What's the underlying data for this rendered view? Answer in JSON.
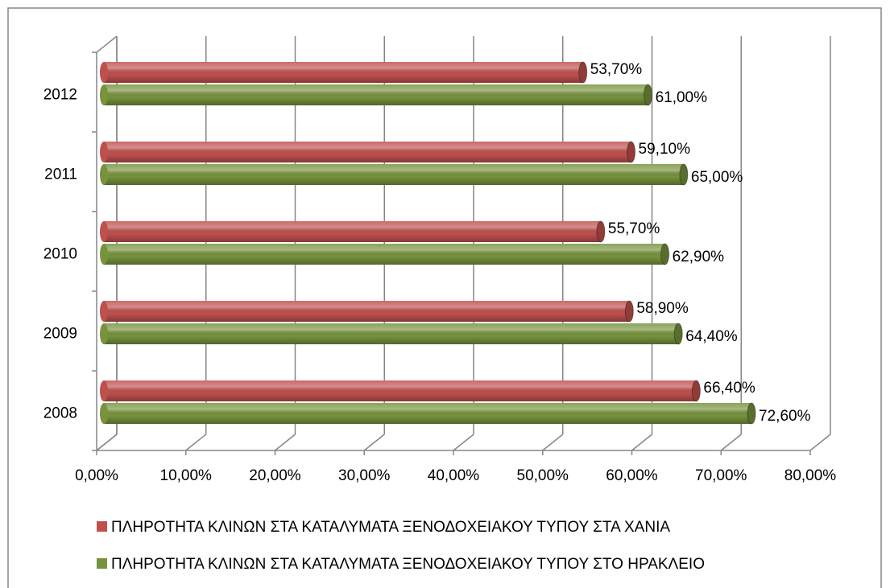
{
  "chart_data": {
    "type": "bar",
    "orientation": "horizontal",
    "categories": [
      "2008",
      "2009",
      "2010",
      "2011",
      "2012"
    ],
    "series": [
      {
        "name": "ΠΛΗΡΟΤΗΤΑ ΚΛΙΝΩΝ ΣΤΑ ΚΑΤΑΛΥΜΑΤΑ ΞΕΝΟΔΟΧΕΙΑΚΟΥ ΤΥΠΟΥ ΣΤΑ ΧΑΝΙΑ",
        "color": "#c0504d",
        "values": [
          66.4,
          58.9,
          55.7,
          59.1,
          53.7
        ],
        "value_labels": [
          "66,40%",
          "58,90%",
          "55,70%",
          "59,10%",
          "53,70%"
        ]
      },
      {
        "name": "ΠΛΗΡΟΤΗΤΑ ΚΛΙΝΩΝ ΣΤΑ ΚΑΤΑΛΥΜΑΤΑ ΞΕΝΟΔΟΧΕΙΑΚΟΥ ΤΥΠΟΥ ΣΤΟ ΗΡΑΚΛΕΙΟ",
        "color": "#77933c",
        "values": [
          72.6,
          64.4,
          62.9,
          65.0,
          61.0
        ],
        "value_labels": [
          "72,60%",
          "64,40%",
          "62,90%",
          "65,00%",
          "61,00%"
        ]
      }
    ],
    "xlim": [
      0,
      80
    ],
    "xticks": [
      {
        "value": 0,
        "label": "0,00%"
      },
      {
        "value": 10,
        "label": "10,00%"
      },
      {
        "value": 20,
        "label": "20,00%"
      },
      {
        "value": 30,
        "label": "30,00%"
      },
      {
        "value": 40,
        "label": "40,00%"
      },
      {
        "value": 50,
        "label": "50,00%"
      },
      {
        "value": 60,
        "label": "60,00%"
      },
      {
        "value": 70,
        "label": "70,00%"
      },
      {
        "value": 80,
        "label": "80,00%"
      }
    ],
    "grid": true,
    "legend": "bottom"
  }
}
